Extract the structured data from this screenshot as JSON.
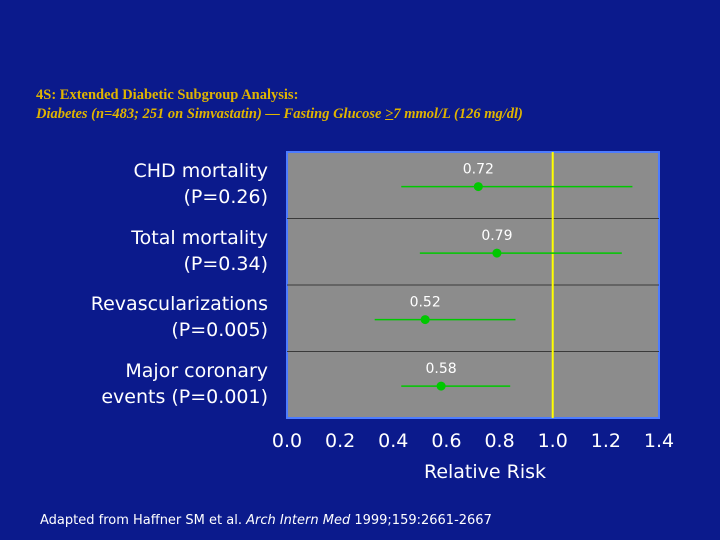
{
  "slide": {
    "title_line1": "4S:  Extended Diabetic Subgroup Analysis:",
    "title_line2_pre": "Diabetes (n=483; 251 on Simvastatin) — Fasting Glucose ",
    "title_line2_ge": ">",
    "title_line2_post": "7 mmol/L (126 mg/dl)",
    "footer_pre": "Adapted from Haffner SM et al. ",
    "footer_journal": "Arch Intern Med",
    "footer_post": " 1999;159:2661-2667"
  },
  "colors": {
    "background": "#0b1a8c",
    "plot_area": "#8c8c8c",
    "plot_border": "#4d7cff",
    "title": "#e0b400",
    "marker": "#00c800",
    "reference_line": "#ffff00",
    "text": "#ffffff"
  },
  "chart_data": {
    "type": "forest",
    "xlabel": "Relative Risk",
    "xlim": [
      0.0,
      1.4
    ],
    "xticks": [
      "0.0",
      "0.2",
      "0.4",
      "0.6",
      "0.8",
      "1.0",
      "1.2",
      "1.4"
    ],
    "reference_value": 1.0,
    "grid": "horizontal row dividers",
    "rows": [
      {
        "label1": "CHD mortality",
        "label2": "(P=0.26)",
        "value": 0.72,
        "value_label": "0.72",
        "ci": [
          0.43,
          1.3
        ]
      },
      {
        "label1": "Total mortality",
        "label2": "(P=0.34)",
        "value": 0.79,
        "value_label": "0.79",
        "ci": [
          0.5,
          1.26
        ]
      },
      {
        "label1": "Revascularizations",
        "label2": "(P=0.005)",
        "value": 0.52,
        "value_label": "0.52",
        "ci": [
          0.33,
          0.86
        ]
      },
      {
        "label1": "Major coronary",
        "label2": "events (P=0.001)",
        "value": 0.58,
        "value_label": "0.58",
        "ci": [
          0.43,
          0.84
        ]
      }
    ]
  }
}
